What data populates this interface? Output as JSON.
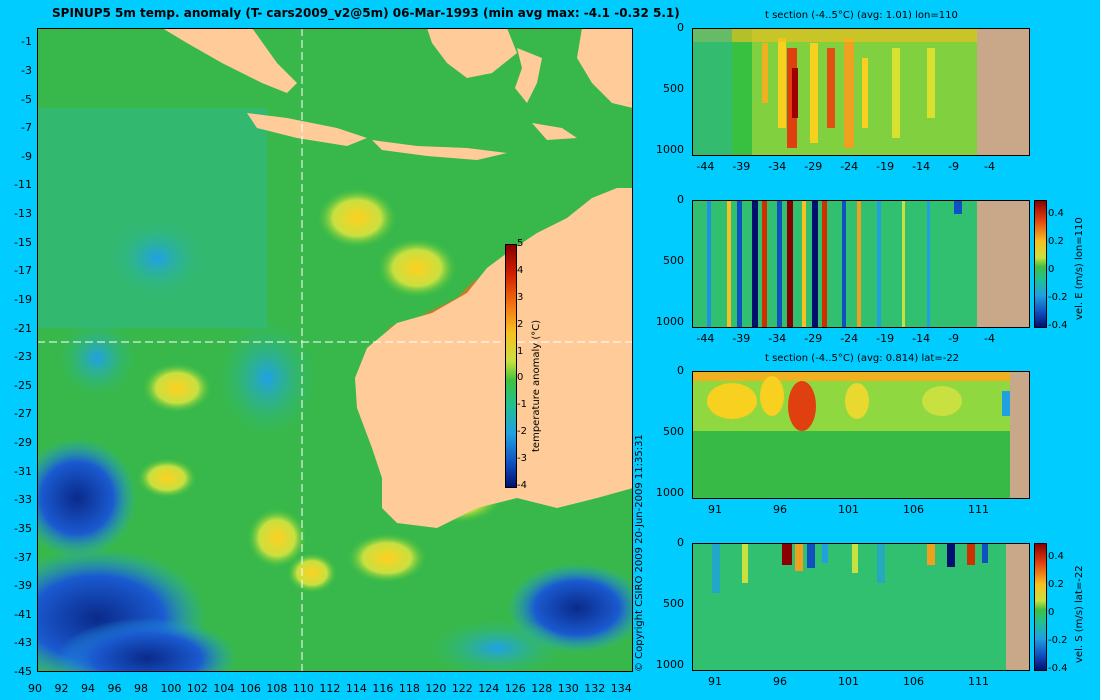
{
  "main_title": "SPINUP5 5m temp. anomaly  (T- cars2009_v2@5m) 06-Mar-1993 (min avg max: -4.1 -0.32 5.1)",
  "copyright": "© Copyright CSIRO 2009   20-Jun-2009 11:35:31",
  "colors": {
    "background": "#00ccff",
    "land": "#ffcc99",
    "section_land": "#c8a888"
  },
  "map": {
    "lon_ticks": [
      "90",
      "92",
      "94",
      "96",
      "98",
      "100",
      "102",
      "104",
      "106",
      "108",
      "110",
      "112",
      "114",
      "116",
      "118",
      "120",
      "122",
      "124",
      "126",
      "128",
      "130",
      "132",
      "134"
    ],
    "lat_ticks": [
      "-1",
      "-3",
      "-5",
      "-7",
      "-9",
      "-11",
      "-13",
      "-15",
      "-17",
      "-19",
      "-21",
      "-23",
      "-25",
      "-27",
      "-29",
      "-31",
      "-33",
      "-35",
      "-37",
      "-39",
      "-41",
      "-43",
      "-45"
    ],
    "colorbar": {
      "label": "temperature anomaly (°C)",
      "ticks": [
        "5",
        "4",
        "3",
        "2",
        "1",
        "0",
        "-1",
        "-2",
        "-3",
        "-4"
      ]
    },
    "crosshair": {
      "lon": 110,
      "lat": -22
    }
  },
  "panels": [
    {
      "title": "t section (-4..5°C) (avg: 1.01) lon=110",
      "y_ticks": [
        "0",
        "500",
        "1000"
      ],
      "x_ticks": [
        "-44",
        "-39",
        "-34",
        "-29",
        "-24",
        "-19",
        "-14",
        "-9",
        "-4"
      ],
      "cbar_label": "",
      "cbar_ticks": []
    },
    {
      "title": "",
      "y_ticks": [
        "0",
        "500",
        "1000"
      ],
      "x_ticks": [
        "-44",
        "-39",
        "-34",
        "-29",
        "-24",
        "-19",
        "-14",
        "-9",
        "-4"
      ],
      "cbar_label": "vel. E (m/s) lon=110",
      "cbar_ticks": [
        "0.4",
        "0.2",
        "0",
        "-0.2",
        "-0.4"
      ]
    },
    {
      "title": "t section (-4..5°C) (avg: 0.814) lat=-22",
      "y_ticks": [
        "0",
        "500",
        "1000"
      ],
      "x_ticks": [
        "91",
        "96",
        "101",
        "106",
        "111"
      ],
      "cbar_label": "",
      "cbar_ticks": []
    },
    {
      "title": "",
      "y_ticks": [
        "0",
        "500",
        "1000"
      ],
      "x_ticks": [
        "91",
        "96",
        "101",
        "106",
        "111"
      ],
      "cbar_label": "vel. S (m/s) lat=-22",
      "cbar_ticks": [
        "0.4",
        "0.2",
        "0",
        "-0.2",
        "-0.4"
      ]
    }
  ],
  "chart_data": [
    {
      "type": "heatmap",
      "title": "SPINUP5 5m temp. anomaly  (T- cars2009_v2@5m) 06-Mar-1993 (min avg max: -4.1 -0.32 5.1)",
      "xlabel": "",
      "ylabel": "",
      "xlim": [
        90,
        135
      ],
      "ylim": [
        -45,
        0
      ],
      "color_range": [
        -4,
        5
      ],
      "colorbar_label": "temperature anomaly (°C)",
      "stats": {
        "min": -4.1,
        "avg": -0.32,
        "max": 5.1
      }
    },
    {
      "type": "heatmap",
      "title": "t section (-4..5°C) (avg: 1.01) lon=110",
      "xlim": [
        -46,
        1
      ],
      "ylim": [
        1050,
        0
      ],
      "color_range": [
        -4,
        5
      ],
      "avg": 1.01
    },
    {
      "type": "heatmap",
      "title": "",
      "xlim": [
        -46,
        1
      ],
      "ylim": [
        1050,
        0
      ],
      "color_range": [
        -0.4,
        0.4
      ],
      "colorbar_label": "vel. E (m/s) lon=110"
    },
    {
      "type": "heatmap",
      "title": "t section (-4..5°C) (avg: 0.814) lat=-22",
      "xlim": [
        89,
        115
      ],
      "ylim": [
        1050,
        0
      ],
      "color_range": [
        -4,
        5
      ],
      "avg": 0.814
    },
    {
      "type": "heatmap",
      "title": "",
      "xlim": [
        89,
        115
      ],
      "ylim": [
        1050,
        0
      ],
      "color_range": [
        -0.4,
        0.4
      ],
      "colorbar_label": "vel. S (m/s) lat=-22"
    }
  ]
}
